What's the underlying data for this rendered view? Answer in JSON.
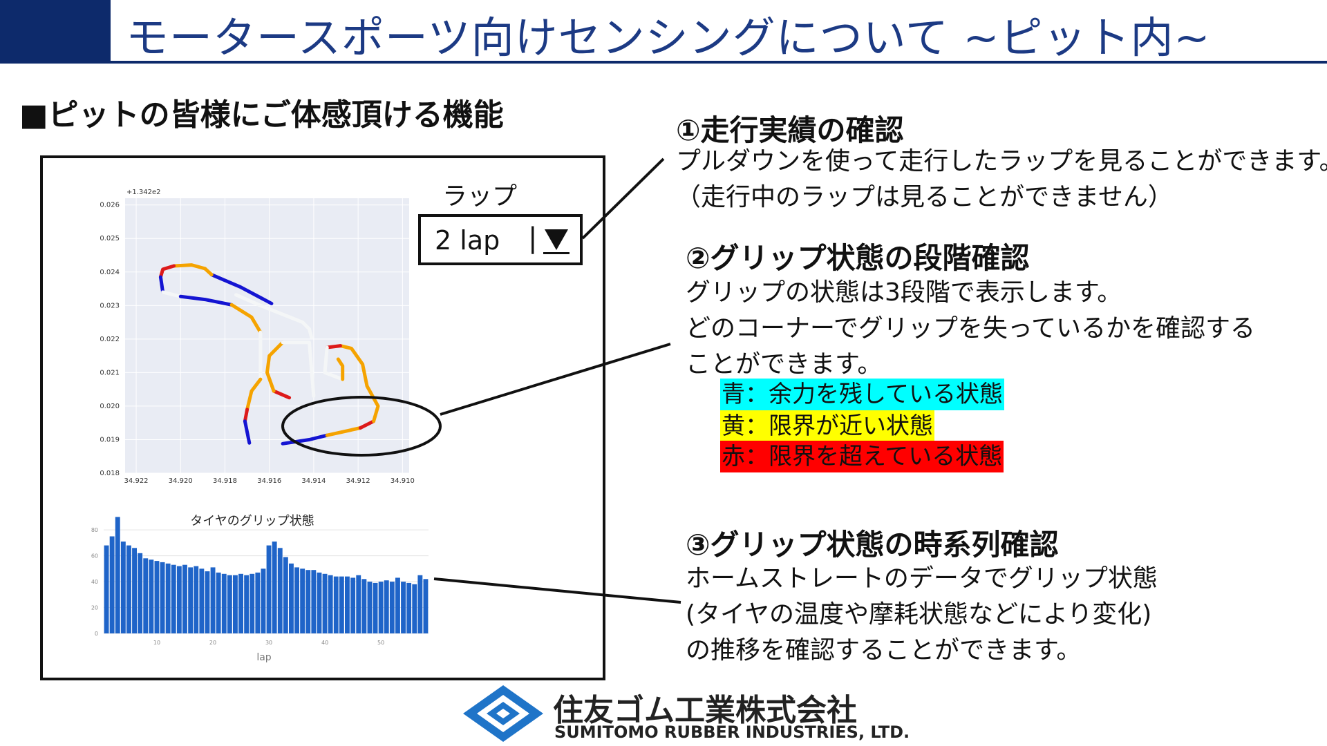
{
  "header": {
    "title": "モータースポーツ向けセンシングについて ~ピット内~",
    "accent_color": "#0d2a6b"
  },
  "section": {
    "heading": "■ピットの皆様にご体感頂ける機能"
  },
  "lap_dropdown": {
    "label": "ラップ",
    "value": "2 lap",
    "separator": "|",
    "arrow_icon": "triangle-down-icon"
  },
  "annotations": [
    {
      "title": "①走行実績の確認",
      "lines": [
        "プルダウンを使って走行したラップを見ることができます。",
        "（走行中のラップは見ることができません）"
      ]
    },
    {
      "title": "②グリップ状態の段階確認",
      "lines": [
        "グリップの状態は3段階で表示します。",
        "どのコーナーでグリップを失っているかを確認する",
        "ことができます。"
      ],
      "legend": [
        {
          "text": "青：余力を残している状態",
          "color": "#00ffff"
        },
        {
          "text": "黄：限界が近い状態",
          "color": "#ffff00"
        },
        {
          "text": "赤：限界を超えている状態",
          "color": "#ff0000"
        }
      ]
    },
    {
      "title": "③グリップ状態の時系列確認",
      "lines": [
        "ホームストレートのデータでグリップ状態",
        "(タイヤの温度や摩耗状態などにより変化)",
        "の推移を確認することができます。"
      ]
    }
  ],
  "chart_data": [
    {
      "type": "scatter",
      "title": "",
      "offset_label": "+1.342e2",
      "xlabel": "",
      "ylabel": "",
      "x_ticks": [
        "34.922",
        "34.920",
        "34.918",
        "34.916",
        "34.914",
        "34.912",
        "34.910"
      ],
      "y_ticks": [
        "0.026",
        "0.025",
        "0.024",
        "0.023",
        "0.022",
        "0.021",
        "0.020",
        "0.019",
        "0.018"
      ],
      "xlim": [
        34.9225,
        34.9097
      ],
      "ylim": [
        0.018,
        0.0262
      ],
      "x_reversed": true,
      "grid": true,
      "segment_colors": {
        "blue": "#1414d2",
        "yellow": "#f5a300",
        "red": "#dd1a1a",
        "white": "#f4f6f7"
      },
      "segments": [
        {
          "color": "blue",
          "points": [
            [
              34.9159,
              0.02306
            ],
            [
              34.9173,
              0.02355
            ],
            [
              34.9186,
              0.02392
            ]
          ]
        },
        {
          "color": "yellow",
          "points": [
            [
              34.9186,
              0.02392
            ],
            [
              34.9189,
              0.0241
            ]
          ]
        },
        {
          "color": "yellow",
          "points": [
            [
              34.9189,
              0.0241
            ],
            [
              34.9195,
              0.02421
            ],
            [
              34.9203,
              0.02418
            ]
          ]
        },
        {
          "color": "red",
          "points": [
            [
              34.9203,
              0.02418
            ],
            [
              34.9208,
              0.02408
            ],
            [
              34.9209,
              0.02385
            ]
          ]
        },
        {
          "color": "blue",
          "points": [
            [
              34.9209,
              0.02385
            ],
            [
              34.9208,
              0.0234
            ]
          ]
        },
        {
          "color": "white",
          "points": [
            [
              34.9208,
              0.0234
            ],
            [
              34.92,
              0.02327
            ]
          ]
        },
        {
          "color": "blue",
          "points": [
            [
              34.92,
              0.02327
            ],
            [
              34.9189,
              0.02318
            ],
            [
              34.9177,
              0.02302
            ]
          ]
        },
        {
          "color": "yellow",
          "points": [
            [
              34.9177,
              0.02302
            ],
            [
              34.9168,
              0.02265
            ],
            [
              34.9164,
              0.0222
            ]
          ]
        },
        {
          "color": "white",
          "points": [
            [
              34.9164,
              0.0222
            ],
            [
              34.9164,
              0.0208
            ]
          ]
        },
        {
          "color": "yellow",
          "points": [
            [
              34.9164,
              0.0208
            ],
            [
              34.9168,
              0.02045
            ],
            [
              34.917,
              0.0199
            ]
          ]
        },
        {
          "color": "red",
          "points": [
            [
              34.917,
              0.0199
            ],
            [
              34.9171,
              0.01955
            ]
          ]
        },
        {
          "color": "blue",
          "points": [
            [
              34.9171,
              0.01955
            ],
            [
              34.9169,
              0.0189
            ]
          ]
        },
        {
          "color": "blue",
          "points": [
            [
              34.9154,
              0.01888
            ],
            [
              34.9142,
              0.019
            ],
            [
              34.9134,
              0.01913
            ]
          ]
        },
        {
          "color": "yellow",
          "points": [
            [
              34.9134,
              0.01913
            ],
            [
              34.9119,
              0.01935
            ]
          ]
        },
        {
          "color": "red",
          "points": [
            [
              34.9119,
              0.01935
            ],
            [
              34.9113,
              0.01955
            ]
          ]
        },
        {
          "color": "yellow",
          "points": [
            [
              34.9113,
              0.01955
            ],
            [
              34.9111,
              0.02
            ],
            [
              34.9116,
              0.0206
            ],
            [
              34.9118,
              0.02125
            ]
          ]
        },
        {
          "color": "yellow",
          "points": [
            [
              34.9118,
              0.02125
            ],
            [
              34.9123,
              0.02172
            ],
            [
              34.9128,
              0.0218
            ]
          ]
        },
        {
          "color": "red",
          "points": [
            [
              34.9128,
              0.0218
            ],
            [
              34.9134,
              0.02175
            ]
          ]
        },
        {
          "color": "white",
          "points": [
            [
              34.9134,
              0.02175
            ],
            [
              34.9135,
              0.021
            ],
            [
              34.9127,
              0.0208
            ]
          ]
        },
        {
          "color": "yellow",
          "points": [
            [
              34.9127,
              0.0208
            ],
            [
              34.9127,
              0.0212
            ],
            [
              34.9129,
              0.0214
            ]
          ]
        },
        {
          "color": "red",
          "points": [
            [
              34.9151,
              0.02025
            ],
            [
              34.9158,
              0.02045
            ]
          ]
        },
        {
          "color": "yellow",
          "points": [
            [
              34.9158,
              0.02045
            ],
            [
              34.9161,
              0.021
            ],
            [
              34.916,
              0.0215
            ],
            [
              34.9154,
              0.0219
            ]
          ]
        },
        {
          "color": "white",
          "points": [
            [
              34.9154,
              0.0219
            ],
            [
              34.9142,
              0.0219
            ],
            [
              34.914,
              0.0203
            ]
          ]
        },
        {
          "color": "white",
          "points": [
            [
              34.9175,
              0.02332
            ],
            [
              34.9164,
              0.023
            ],
            [
              34.9145,
              0.0225
            ],
            [
              34.9142,
              0.0223
            ]
          ]
        },
        {
          "color": "white",
          "points": [
            [
              34.9142,
              0.0223
            ],
            [
              34.9141,
              0.02205
            ]
          ]
        }
      ]
    },
    {
      "type": "bar",
      "title": "タイヤのグリップ状態",
      "xlabel": "lap",
      "ylabel": "",
      "x": [
        1,
        2,
        3,
        4,
        5,
        6,
        7,
        8,
        9,
        10,
        11,
        12,
        13,
        14,
        15,
        16,
        17,
        18,
        19,
        20,
        21,
        22,
        23,
        24,
        25,
        26,
        27,
        28,
        29,
        30,
        31,
        32,
        33,
        34,
        35,
        36,
        37,
        38,
        39,
        40,
        41,
        42,
        43,
        44,
        45,
        46,
        47,
        48,
        49,
        50,
        51,
        52,
        53,
        54,
        55,
        56,
        57,
        58
      ],
      "values": [
        68,
        75,
        90,
        71,
        68,
        66,
        62,
        58,
        57,
        56,
        55,
        54,
        53,
        52,
        53,
        51,
        52,
        50,
        48,
        51,
        47,
        46,
        45,
        45,
        46,
        45,
        46,
        47,
        50,
        68,
        71,
        66,
        59,
        54,
        51,
        50,
        49,
        49,
        47,
        46,
        45,
        44,
        44,
        44,
        43,
        45,
        42,
        40,
        39,
        40,
        41,
        40,
        43,
        40,
        39,
        38,
        45,
        42
      ],
      "x_ticks": [
        "10",
        "20",
        "30",
        "40",
        "50"
      ],
      "y_ticks": [
        "0",
        "20",
        "40",
        "60",
        "80"
      ],
      "ylim": [
        0,
        95
      ],
      "bar_color": "#1f64c8",
      "grid": true
    }
  ],
  "logo": {
    "jp": "住友ゴム工業株式会社",
    "en": "SUMITOMO RUBBER INDUSTRIES, LTD.",
    "mark_icon": "sumitomo-igeta-icon",
    "color": "#1f74c8"
  }
}
